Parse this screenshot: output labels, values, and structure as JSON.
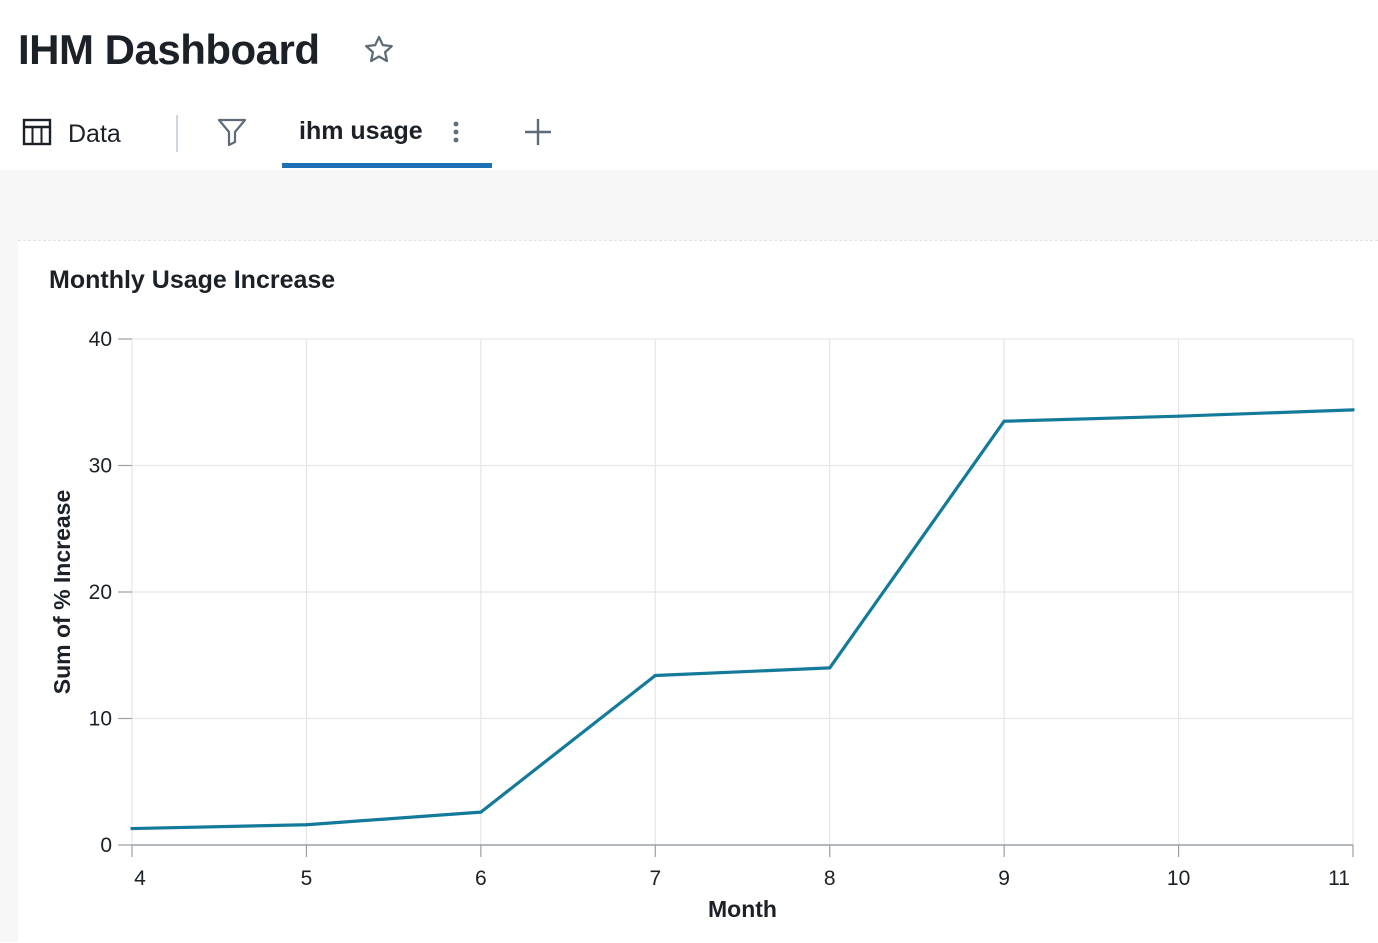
{
  "dashboard": {
    "title": "IHM Dashboard"
  },
  "tabs": {
    "data_label": "Data",
    "active_label": "ihm usage"
  },
  "widget": {
    "title": "Monthly Usage Increase"
  },
  "colors": {
    "line": "#147a9a",
    "active_tab": "#1f6fb5"
  },
  "chart_data": {
    "type": "line",
    "title": "Monthly Usage Increase",
    "xlabel": "Month",
    "ylabel": "Sum of % Increase",
    "x": [
      4,
      5,
      6,
      7,
      8,
      9,
      10,
      11
    ],
    "series": [
      {
        "values": [
          1.3,
          1.6,
          2.6,
          13.4,
          14.0,
          33.5,
          33.9,
          34.4
        ]
      }
    ],
    "xlim": [
      4,
      11
    ],
    "ylim": [
      0,
      40
    ],
    "xticks": [
      4,
      5,
      6,
      7,
      8,
      9,
      10,
      11
    ],
    "yticks": [
      0,
      10,
      20,
      30,
      40
    ],
    "grid": true
  }
}
